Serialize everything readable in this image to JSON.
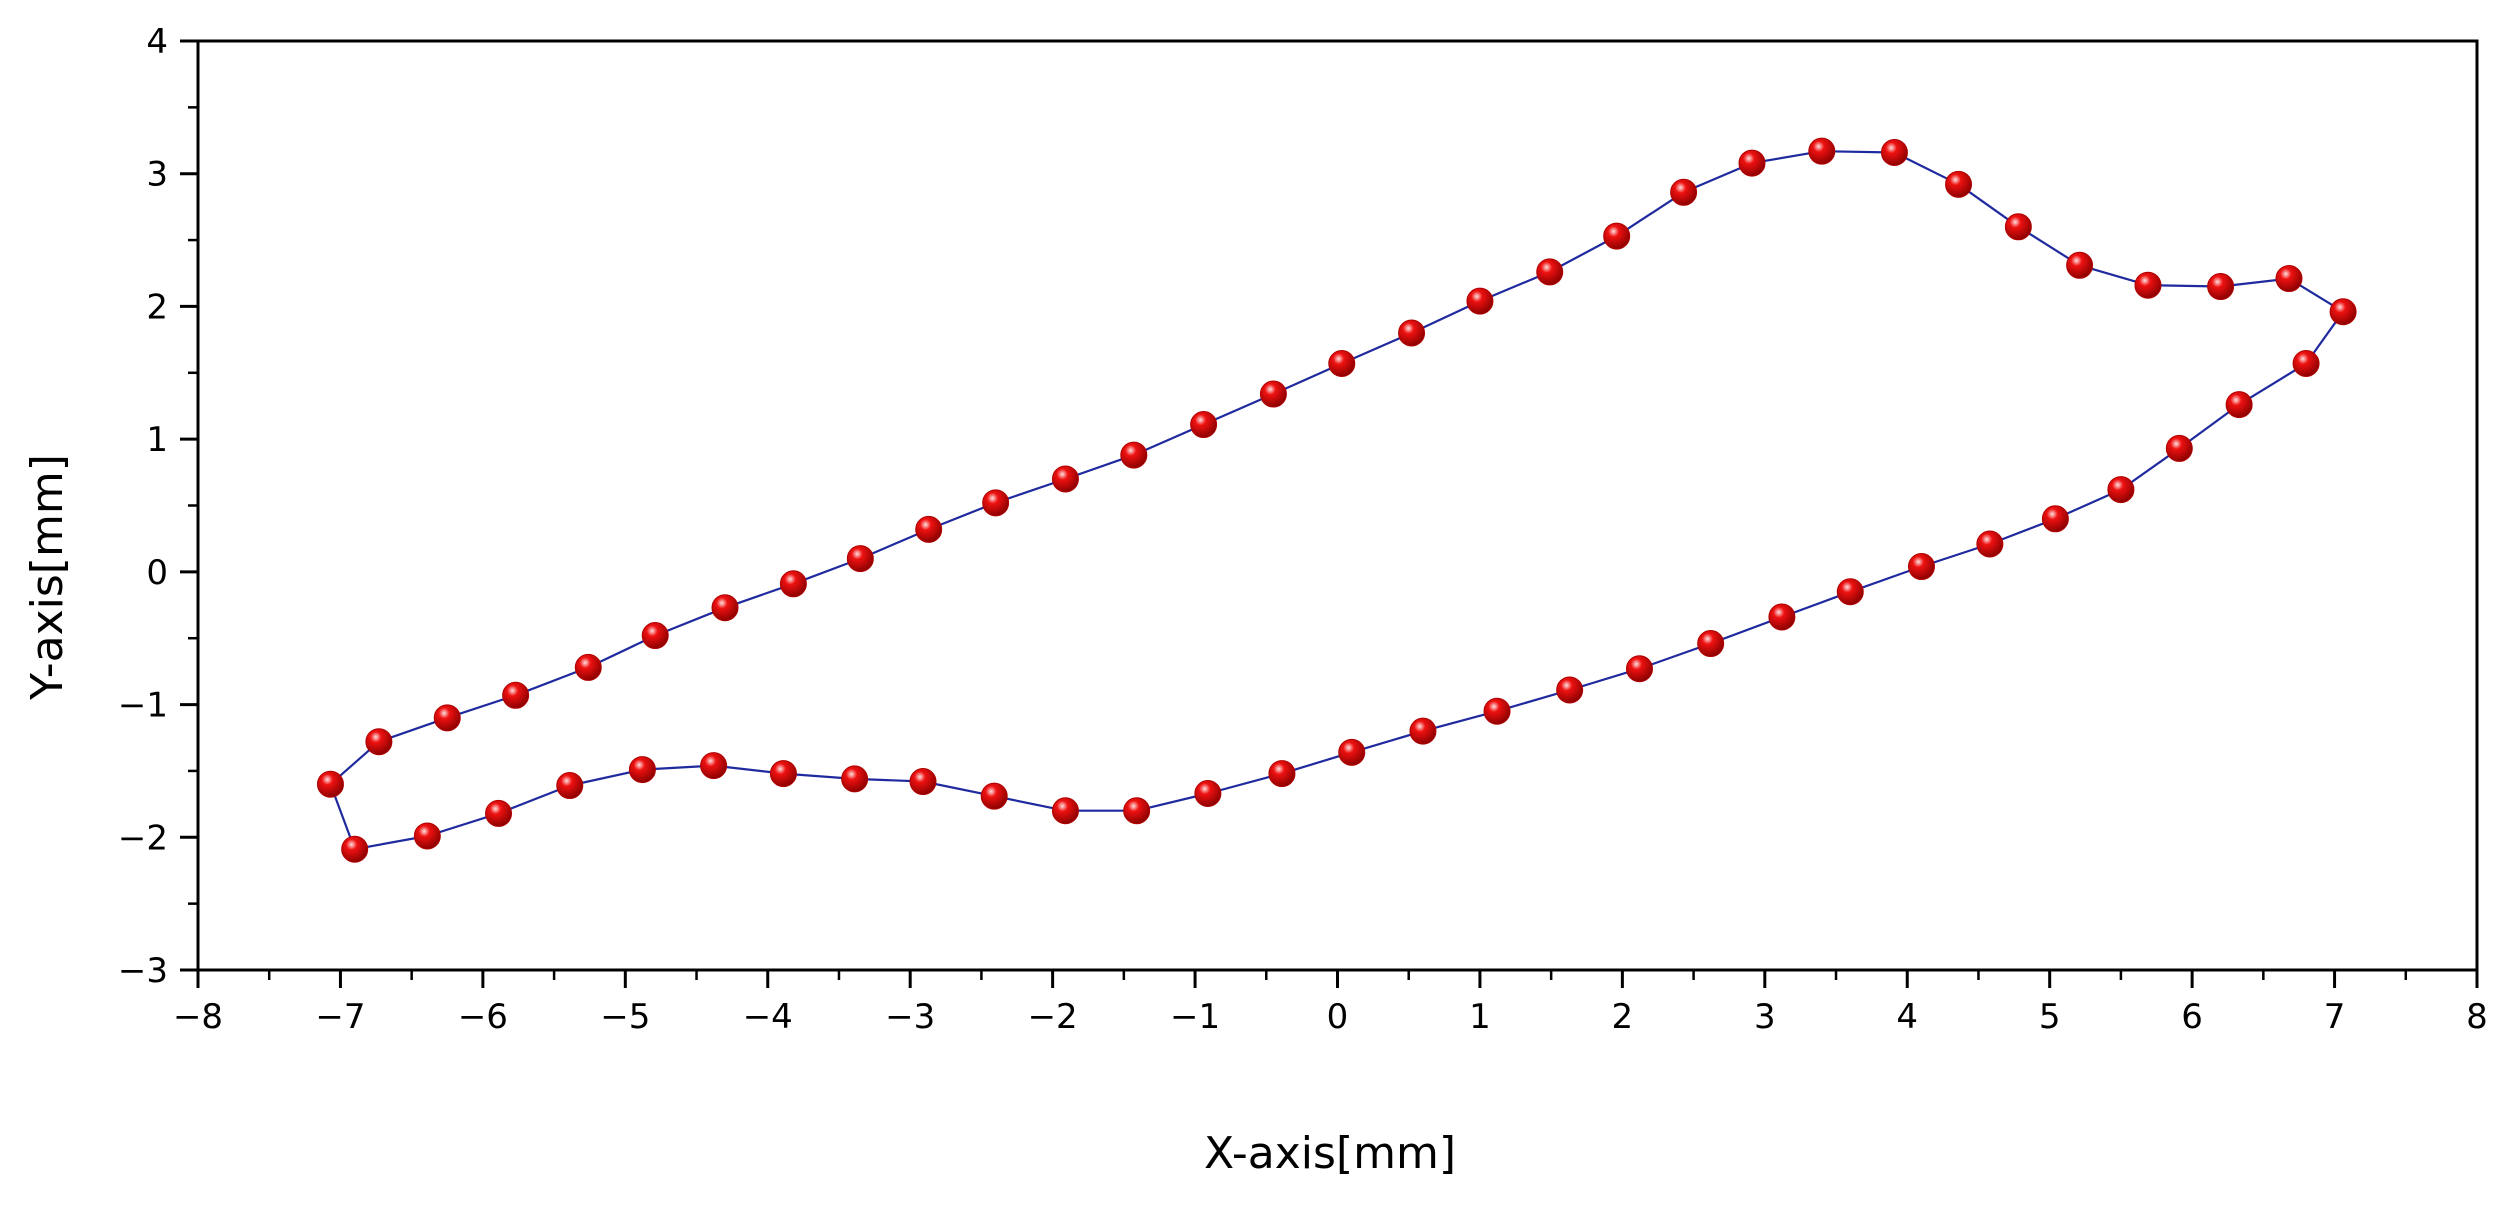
{
  "chart_data": {
    "type": "line",
    "xlabel": "X-axis[mm]",
    "ylabel": "Y-axis[mm]",
    "xlim": [
      -8,
      8
    ],
    "ylim": [
      -3,
      4
    ],
    "xticks": [
      -8,
      -7,
      -6,
      -5,
      -4,
      -3,
      -2,
      -1,
      0,
      1,
      2,
      3,
      4,
      5,
      6,
      7,
      8
    ],
    "yticks": [
      -3,
      -2,
      -1,
      0,
      1,
      2,
      3,
      4
    ],
    "tick_labels_x": [
      "−8",
      "−7",
      "−6",
      "−5",
      "−4",
      "−3",
      "−2",
      "−1",
      "0",
      "1",
      "2",
      "3",
      "4",
      "5",
      "6",
      "7",
      "8"
    ],
    "tick_labels_y": [
      "−3",
      "−2",
      "−1",
      "0",
      "1",
      "2",
      "3",
      "4"
    ],
    "grid": false,
    "closed": true,
    "line_color": "#1f2a9e",
    "marker_color": "#ee1111",
    "series": [
      {
        "values_xy": [
          [
            -7.07,
            -1.6
          ],
          [
            -6.73,
            -1.28
          ],
          [
            -6.25,
            -1.1
          ],
          [
            -5.77,
            -0.93
          ],
          [
            -5.26,
            -0.72
          ],
          [
            -4.79,
            -0.48
          ],
          [
            -4.3,
            -0.27
          ],
          [
            -3.82,
            -0.09
          ],
          [
            -3.35,
            0.1
          ],
          [
            -2.87,
            0.32
          ],
          [
            -2.4,
            0.52
          ],
          [
            -1.91,
            0.7
          ],
          [
            -1.43,
            0.88
          ],
          [
            -0.94,
            1.11
          ],
          [
            -0.45,
            1.34
          ],
          [
            0.03,
            1.57
          ],
          [
            0.52,
            1.8
          ],
          [
            1.0,
            2.04
          ],
          [
            1.49,
            2.26
          ],
          [
            1.96,
            2.53
          ],
          [
            2.43,
            2.86
          ],
          [
            2.91,
            3.08
          ],
          [
            3.4,
            3.17
          ],
          [
            3.91,
            3.16
          ],
          [
            4.36,
            2.92
          ],
          [
            4.78,
            2.6
          ],
          [
            5.21,
            2.31
          ],
          [
            5.69,
            2.16
          ],
          [
            6.2,
            2.15
          ],
          [
            6.68,
            2.21
          ],
          [
            7.06,
            1.96
          ],
          [
            6.8,
            1.57
          ],
          [
            6.33,
            1.26
          ],
          [
            5.91,
            0.93
          ],
          [
            5.5,
            0.62
          ],
          [
            5.04,
            0.4
          ],
          [
            4.58,
            0.21
          ],
          [
            4.1,
            0.04
          ],
          [
            3.6,
            -0.15
          ],
          [
            3.12,
            -0.34
          ],
          [
            2.62,
            -0.54
          ],
          [
            2.12,
            -0.73
          ],
          [
            1.63,
            -0.89
          ],
          [
            1.12,
            -1.05
          ],
          [
            0.6,
            -1.2
          ],
          [
            0.1,
            -1.36
          ],
          [
            -0.39,
            -1.52
          ],
          [
            -0.91,
            -1.67
          ],
          [
            -1.41,
            -1.8
          ],
          [
            -1.91,
            -1.8
          ],
          [
            -2.41,
            -1.69
          ],
          [
            -2.91,
            -1.58
          ],
          [
            -3.39,
            -1.56
          ],
          [
            -3.89,
            -1.52
          ],
          [
            -4.38,
            -1.46
          ],
          [
            -4.88,
            -1.49
          ],
          [
            -5.39,
            -1.61
          ],
          [
            -5.89,
            -1.82
          ],
          [
            -6.39,
            -1.99
          ],
          [
            -6.9,
            -2.09
          ]
        ]
      }
    ]
  }
}
